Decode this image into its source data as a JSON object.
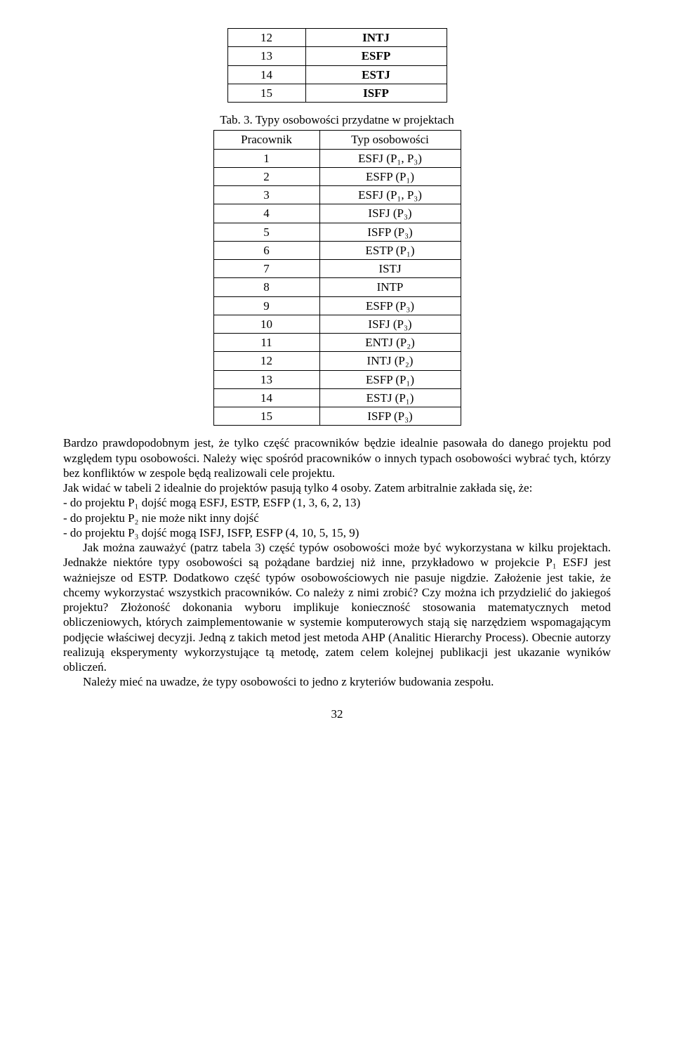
{
  "table2": {
    "rows": [
      {
        "n": "12",
        "v": "INTJ"
      },
      {
        "n": "13",
        "v": "ESFP"
      },
      {
        "n": "14",
        "v": "ESTJ"
      },
      {
        "n": "15",
        "v": "ISFP"
      }
    ]
  },
  "caption3": "Tab. 3. Typy osobowości przydatne w projektach",
  "table3": {
    "header": {
      "c1": "Pracownik",
      "c2": "Typ osobowości"
    },
    "rows": [
      {
        "n": "1",
        "v": "ESFJ (P₁, P₃)"
      },
      {
        "n": "2",
        "v": "ESFP (P₁)"
      },
      {
        "n": "3",
        "v": "ESFJ (P₁, P₃)"
      },
      {
        "n": "4",
        "v": "ISFJ (P₃)"
      },
      {
        "n": "5",
        "v": "ISFP (P₃)"
      },
      {
        "n": "6",
        "v": "ESTP (P₁)"
      },
      {
        "n": "7",
        "v": "ISTJ"
      },
      {
        "n": "8",
        "v": "INTP"
      },
      {
        "n": "9",
        "v": "ESFP (P₃)"
      },
      {
        "n": "10",
        "v": "ISFJ (P₃)"
      },
      {
        "n": "11",
        "v": "ENTJ (P₂)"
      },
      {
        "n": "12",
        "v": "INTJ (P₂)"
      },
      {
        "n": "13",
        "v": "ESFP (P₁)"
      },
      {
        "n": "14",
        "v": "ESTJ (P₁)"
      },
      {
        "n": "15",
        "v": "ISFP (P₃)"
      }
    ]
  },
  "para1": "Bardzo prawdopodobnym jest, że tylko część pracowników będzie idealnie pasowała do danego projektu pod względem typu osobowości. Należy więc spośród pracowników o innych typach osobowości wybrać tych, którzy bez konfliktów w zespole będą realizowali cele projektu.",
  "para2": "Jak widać w tabeli 2 idealnie do projektów pasują tylko 4 osoby. Zatem arbitralnie zakłada się, że:",
  "li1": "- do projektu P₁ dojść mogą ESFJ, ESTP, ESFP (1, 3, 6, 2, 13)",
  "li2": "- do projektu P₂ nie może nikt inny dojść",
  "li3": "- do projektu P₃ dojść mogą ISFJ, ISFP, ESFP (4, 10, 5, 15, 9)",
  "para3": "Jak można zauważyć (patrz tabela 3) część typów osobowości może być wykorzystana w kilku projektach. Jednakże niektóre typy osobowości są pożądane bardziej niż inne, przykładowo w projekcie P₁ ESFJ jest ważniejsze od ESTP. Dodatkowo część typów osobowościowych nie pasuje nigdzie. Założenie jest takie, że chcemy wykorzystać wszystkich pracowników. Co należy z nimi zrobić? Czy można ich przydzielić do jakiegoś projektu? Złożoność dokonania wyboru implikuje konieczność stosowania matematycznych metod obliczeniowych, których zaimplementowanie w systemie komputerowych stają się narzędziem wspomagającym podjęcie właściwej decyzji. Jedną z takich metod jest metoda AHP (Analitic Hierarchy Process). Obecnie autorzy realizują eksperymenty wykorzystujące tą metodę, zatem celem kolejnej publikacji jest ukazanie wyników obliczeń.",
  "para4": "Należy mieć na uwadze, że typy osobowości to jedno z kryteriów budowania zespołu.",
  "pagenum": "32"
}
